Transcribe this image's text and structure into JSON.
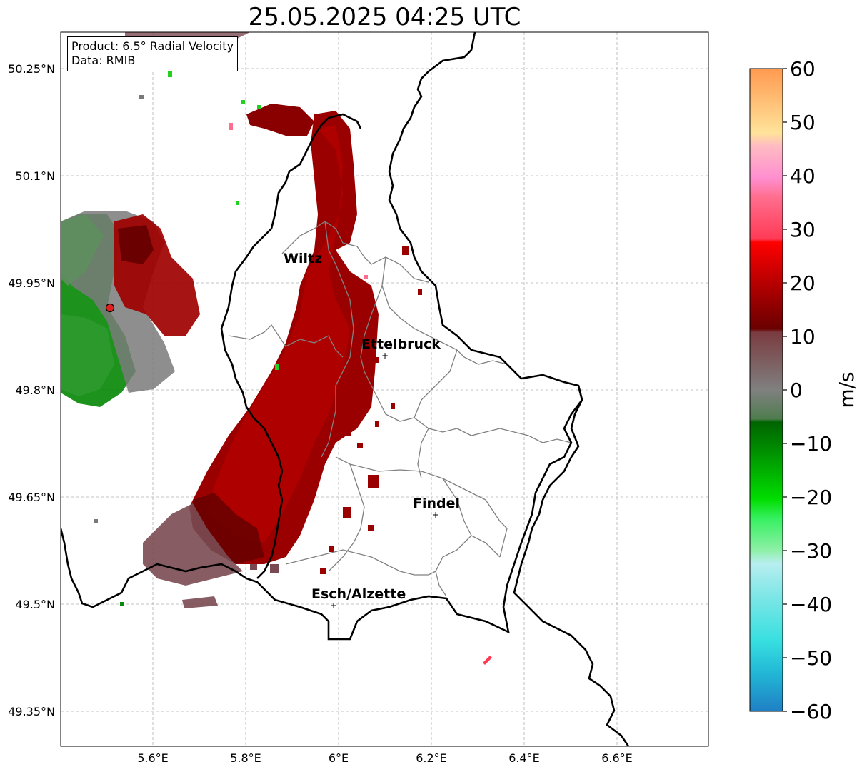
{
  "title": "25.05.2025 04:25 UTC",
  "info": {
    "product": "Product: 6.5° Radial Velocity",
    "data": "Data: RMIB"
  },
  "axes": {
    "x_ticks": [
      "5.6°E",
      "5.8°E",
      "6°E",
      "6.2°E",
      "6.4°E",
      "6.6°E"
    ],
    "y_ticks": [
      "50.25°N",
      "50.1°N",
      "49.95°N",
      "49.8°N",
      "49.65°N",
      "49.5°N",
      "49.35°N"
    ]
  },
  "cities": [
    {
      "name": "Wiltz",
      "lon": 5.93,
      "lat": 49.97,
      "marker": false
    },
    {
      "name": "Ettelbruck",
      "lon": 6.1,
      "lat": 49.85,
      "marker": true
    },
    {
      "name": "Findel",
      "lon": 6.21,
      "lat": 49.63,
      "marker": true
    },
    {
      "name": "Esch/Alzette",
      "lon": 5.99,
      "lat": 49.5,
      "marker": true
    }
  ],
  "colorbar": {
    "label": "m/s",
    "min": -60,
    "max": 60,
    "ticks": [
      "60",
      "50",
      "40",
      "30",
      "20",
      "10",
      "0",
      "−10",
      "−20",
      "−30",
      "−40",
      "−50",
      "−60"
    ]
  },
  "colors": {
    "inbound_green": "#0a8a0a",
    "outbound_red": "#a00000",
    "radar_site": "#e02020",
    "border_black": "#000000",
    "district_gray": "#808080",
    "grid": "#b0b0b0"
  }
}
